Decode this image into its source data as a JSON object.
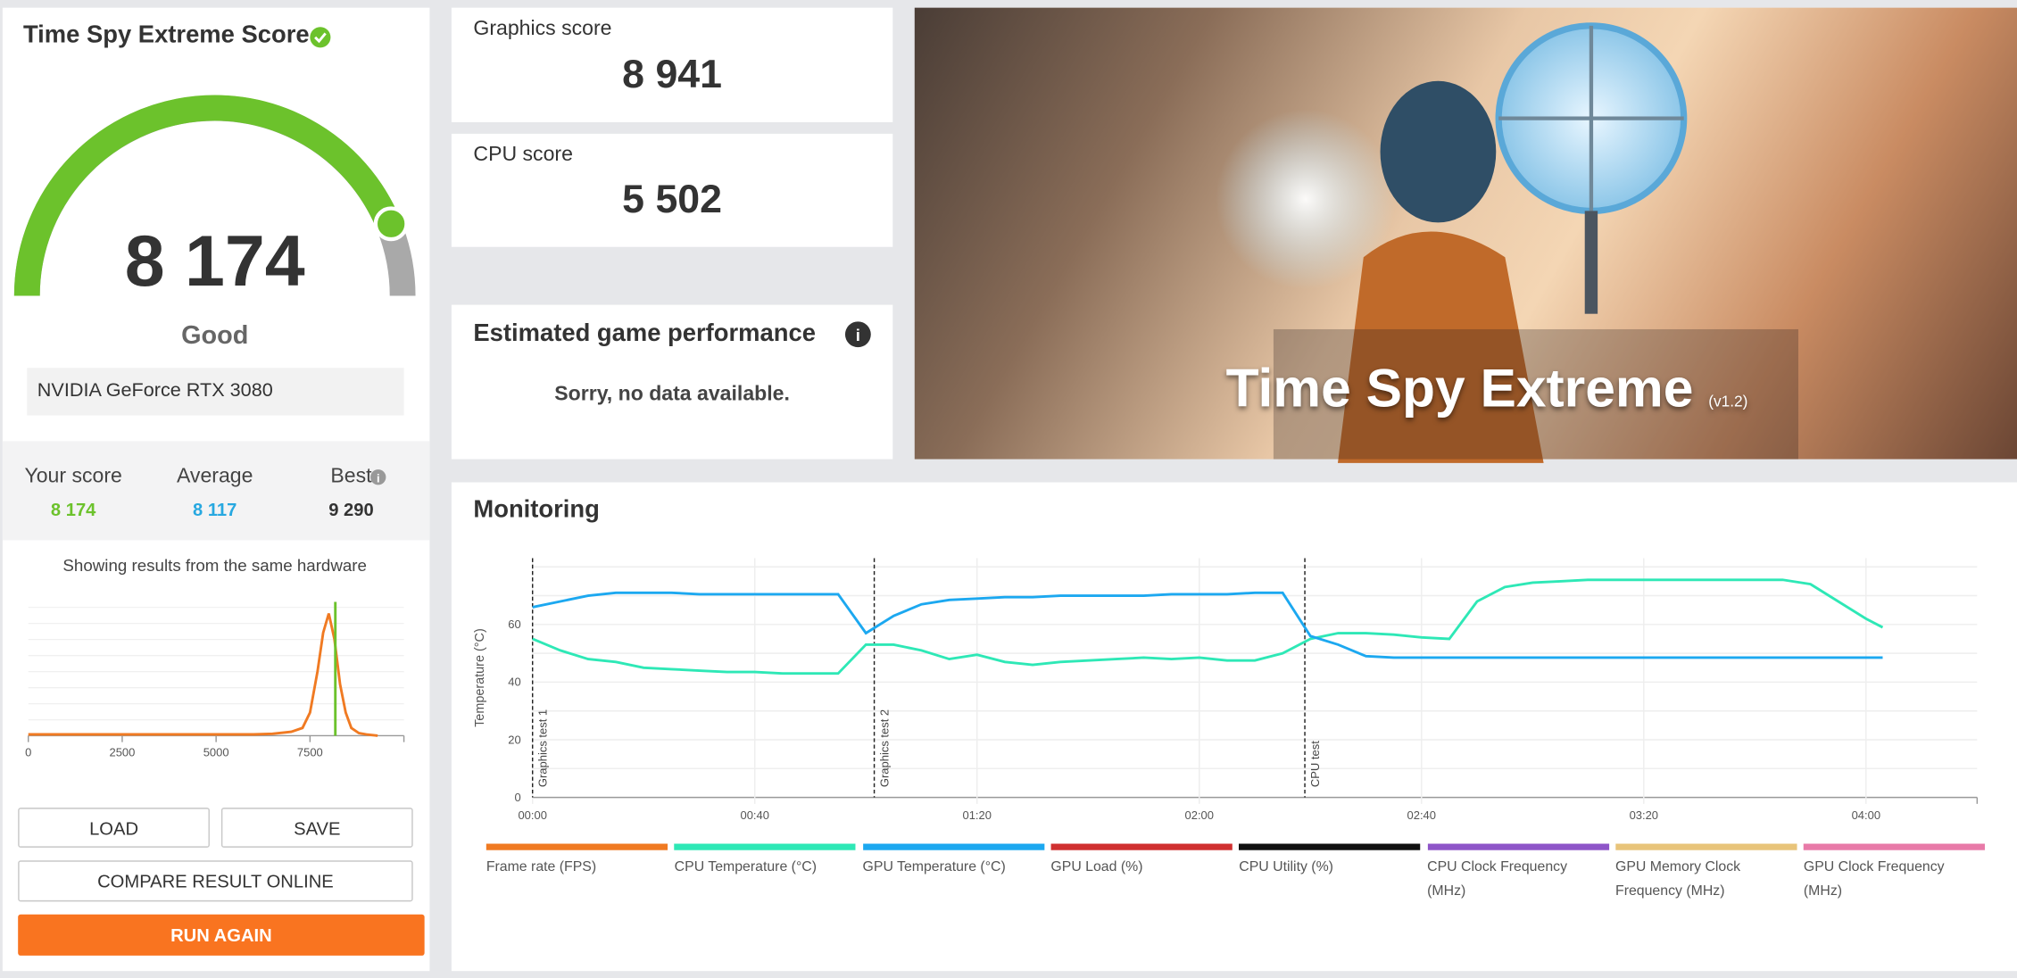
{
  "score_panel": {
    "title": "Time Spy Extreme Score",
    "score": "8 174",
    "rating": "Good",
    "gpu": "NVIDIA GeForce RTX 3080",
    "comparison": [
      {
        "label": "Your score",
        "value": "8 174",
        "color": "#6cc22c"
      },
      {
        "label": "Average",
        "value": "8 117",
        "color": "#27a8e0"
      },
      {
        "label": "Best",
        "value": "9 290",
        "color": "#333333"
      }
    ],
    "distribution": {
      "type": "line",
      "caption": "Showing results from the same hardware",
      "x": [
        0,
        1000,
        2000,
        3000,
        4000,
        5000,
        6000,
        6500,
        7000,
        7300,
        7500,
        7700,
        7850,
        8000,
        8150,
        8300,
        8450,
        8600,
        8800,
        9000,
        9300
      ],
      "values": [
        1,
        1,
        1,
        1,
        1,
        1,
        1,
        1.5,
        3,
        6,
        18,
        50,
        80,
        95,
        75,
        40,
        18,
        6,
        2,
        1,
        0
      ],
      "color": "#f07a22",
      "marker": 8174,
      "marker_color": "#6cc22c",
      "xlim": [
        0,
        10000
      ],
      "ylim": [
        0,
        100
      ],
      "xticks": [
        0,
        2500,
        5000,
        7500
      ]
    },
    "buttons": {
      "load": "LOAD",
      "save": "SAVE",
      "compare": "COMPARE RESULT ONLINE",
      "run_again": "RUN AGAIN"
    }
  },
  "graphics_score": {
    "label": "Graphics score",
    "value": "8 941"
  },
  "cpu_score": {
    "label": "CPU score",
    "value": "5 502"
  },
  "game_performance": {
    "title": "Estimated game performance",
    "message": "Sorry, no data available."
  },
  "banner": {
    "title": "Time Spy Extreme",
    "version": "(v1.2)"
  },
  "monitoring": {
    "title": "Monitoring",
    "chart": {
      "type": "line",
      "y_label": "Temperature (°C)",
      "x": [
        0,
        5,
        10,
        15,
        20,
        25,
        30,
        35,
        40,
        45,
        50,
        55,
        60,
        65,
        70,
        75,
        80,
        85,
        90,
        95,
        100,
        105,
        110,
        115,
        120,
        125,
        130,
        135,
        140,
        145,
        150,
        155,
        160,
        165,
        170,
        175,
        180,
        185,
        190,
        195,
        200,
        205,
        210,
        215,
        220,
        225,
        230,
        235,
        240,
        243
      ],
      "xlim": [
        0,
        260
      ],
      "xticks": [
        {
          "value": 0,
          "label": "00:00"
        },
        {
          "value": 40,
          "label": "00:40"
        },
        {
          "value": 80,
          "label": "01:20"
        },
        {
          "value": 120,
          "label": "02:00"
        },
        {
          "value": 160,
          "label": "02:40"
        },
        {
          "value": 200,
          "label": "03:20"
        },
        {
          "value": 240,
          "label": "04:00"
        }
      ],
      "ylim": [
        0,
        83
      ],
      "yticks": [
        0,
        20,
        40,
        60
      ],
      "grid_step": 10,
      "markers": [
        {
          "x": 0,
          "label": "Graphics test 1"
        },
        {
          "x": 61.5,
          "label": "Graphics test 2"
        },
        {
          "x": 139,
          "label": "CPU test"
        }
      ],
      "series": [
        {
          "name": "Frame rate (FPS)",
          "color": "#f07a22"
        },
        {
          "name": "CPU Temperature (°C)",
          "color": "#2ee8b6",
          "values": [
            55,
            51,
            48,
            47,
            45,
            44.5,
            44,
            43.5,
            43.5,
            43,
            43,
            43,
            53,
            53,
            51,
            48,
            49.5,
            47,
            46,
            47,
            47.5,
            48,
            48.5,
            48,
            48.5,
            47.5,
            47.5,
            50,
            55,
            57,
            57,
            56.5,
            55.5,
            55,
            68,
            73,
            74.5,
            75,
            75.5,
            75.5,
            75.5,
            75.5,
            75.5,
            75.5,
            75.5,
            75.5,
            74,
            68,
            62,
            59
          ]
        },
        {
          "name": "GPU Temperature (°C)",
          "color": "#1ca8f0",
          "values": [
            66,
            68,
            70,
            71,
            71,
            71,
            70.5,
            70.5,
            70.5,
            70.5,
            70.5,
            70.5,
            57,
            63,
            67,
            68.5,
            69,
            69.5,
            69.5,
            70,
            70,
            70,
            70,
            70.5,
            70.5,
            70.5,
            71,
            71,
            56,
            53,
            49,
            48.5,
            48.5,
            48.5,
            48.5,
            48.5,
            48.5,
            48.5,
            48.5,
            48.5,
            48.5,
            48.5,
            48.5,
            48.5,
            48.5,
            48.5,
            48.5,
            48.5,
            48.5,
            48.5
          ]
        },
        {
          "name": "GPU Load (%)",
          "color": "#d03030"
        },
        {
          "name": "CPU Utility (%)",
          "color": "#111111"
        },
        {
          "name": "CPU Clock Frequency (MHz)",
          "color": "#8e55c8"
        },
        {
          "name": "GPU Memory Clock Frequency (MHz)",
          "color": "#e8c47a"
        },
        {
          "name": "GPU Clock Frequency (MHz)",
          "color": "#e87aa8"
        }
      ]
    }
  }
}
